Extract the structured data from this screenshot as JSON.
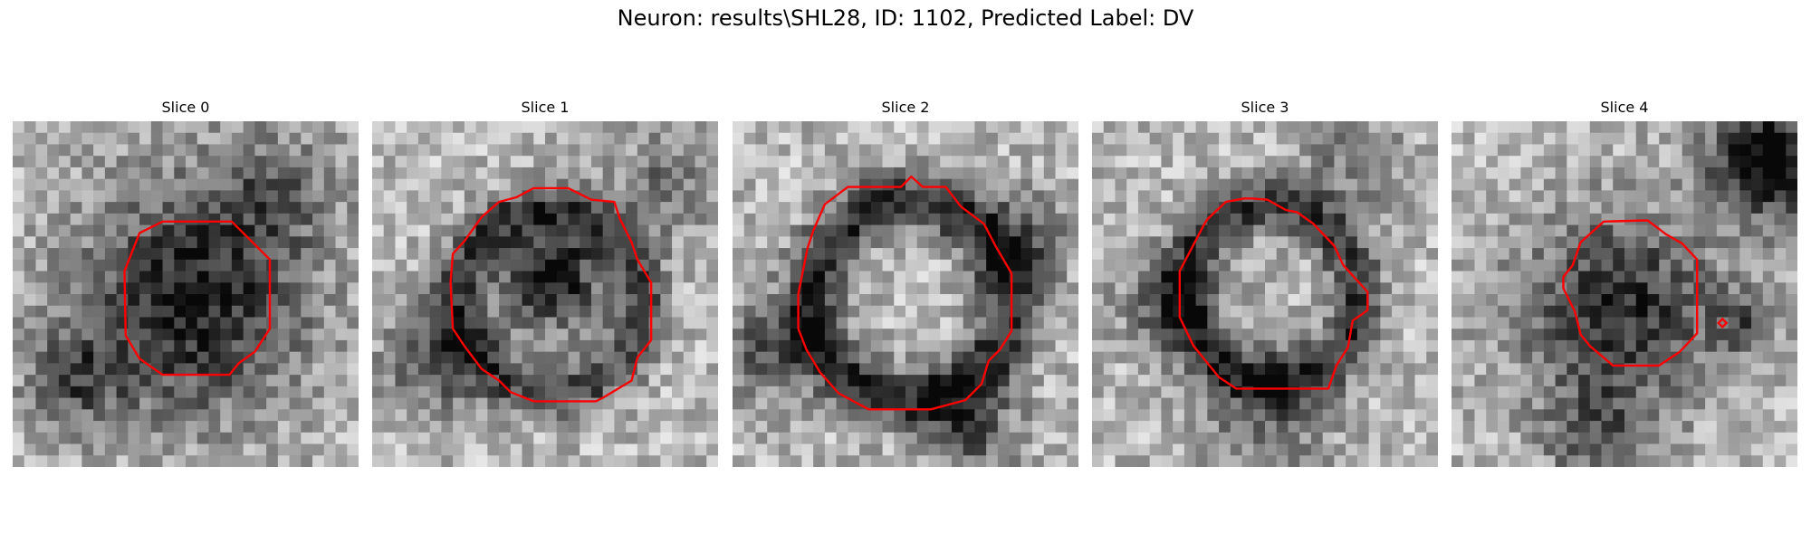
{
  "figure": {
    "suptitle": "Neuron: results\\SHL28, ID: 1102, Predicted Label: DV",
    "contour_color": "#ff0000"
  },
  "slices": [
    {
      "title": "Slice 0"
    },
    {
      "title": "Slice 1"
    },
    {
      "title": "Slice 2"
    },
    {
      "title": "Slice 3"
    },
    {
      "title": "Slice 4"
    }
  ]
}
